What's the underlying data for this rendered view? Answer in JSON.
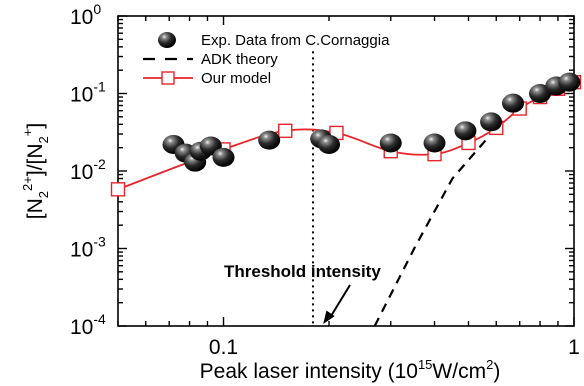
{
  "chart_data": {
    "type": "scatter",
    "title": "",
    "xlabel": "Peak laser intensity (10^15 W/cm^2)",
    "ylabel": "[N2 2+]/[N2 +]",
    "x_scale": "log",
    "y_scale": "log",
    "xlim": [
      0.05,
      1.0
    ],
    "ylim": [
      0.0001,
      1.0
    ],
    "x_ticks": [
      {
        "value": 0.1,
        "label": "0.1"
      },
      {
        "value": 1.0,
        "label": "1"
      }
    ],
    "y_ticks": [
      {
        "value": 0.0001,
        "base": "10",
        "exp": "-4"
      },
      {
        "value": 0.001,
        "base": "10",
        "exp": "-3"
      },
      {
        "value": 0.01,
        "base": "10",
        "exp": "-2"
      },
      {
        "value": 0.1,
        "base": "10",
        "exp": "-1"
      },
      {
        "value": 1.0,
        "base": "10",
        "exp": "0"
      }
    ],
    "grid": false,
    "legend_position": "top-left",
    "series": [
      {
        "name": "Exp. Data from C.Cornaggia",
        "style": "spheres",
        "color": "#222222",
        "points": [
          {
            "x": 0.072,
            "y": 0.022
          },
          {
            "x": 0.078,
            "y": 0.017
          },
          {
            "x": 0.083,
            "y": 0.013
          },
          {
            "x": 0.086,
            "y": 0.018
          },
          {
            "x": 0.092,
            "y": 0.021
          },
          {
            "x": 0.1,
            "y": 0.015
          },
          {
            "x": 0.135,
            "y": 0.025
          },
          {
            "x": 0.19,
            "y": 0.026
          },
          {
            "x": 0.2,
            "y": 0.022
          },
          {
            "x": 0.3,
            "y": 0.023
          },
          {
            "x": 0.4,
            "y": 0.023
          },
          {
            "x": 0.49,
            "y": 0.033
          },
          {
            "x": 0.58,
            "y": 0.043
          },
          {
            "x": 0.67,
            "y": 0.075
          },
          {
            "x": 0.8,
            "y": 0.1
          },
          {
            "x": 0.89,
            "y": 0.125
          },
          {
            "x": 0.97,
            "y": 0.14
          }
        ]
      },
      {
        "name": "ADK theory",
        "style": "dashed",
        "color": "#000000",
        "points": [
          {
            "x": 0.27,
            "y": 0.0001
          },
          {
            "x": 0.35,
            "y": 0.001
          },
          {
            "x": 0.45,
            "y": 0.008
          },
          {
            "x": 0.56,
            "y": 0.025
          }
        ]
      },
      {
        "name": "Our model",
        "style": "line-open-square",
        "color": "#e8242b",
        "points": [
          {
            "x": 0.05,
            "y": 0.0058
          },
          {
            "x": 0.1,
            "y": 0.019
          },
          {
            "x": 0.15,
            "y": 0.033
          },
          {
            "x": 0.21,
            "y": 0.031
          },
          {
            "x": 0.3,
            "y": 0.018
          },
          {
            "x": 0.4,
            "y": 0.0165
          },
          {
            "x": 0.5,
            "y": 0.023
          },
          {
            "x": 0.6,
            "y": 0.036
          },
          {
            "x": 0.7,
            "y": 0.064
          },
          {
            "x": 0.8,
            "y": 0.09
          },
          {
            "x": 0.9,
            "y": 0.115
          },
          {
            "x": 1.0,
            "y": 0.14
          }
        ]
      }
    ],
    "annotations": [
      {
        "text": "Threshold intensity",
        "arrow_to": {
          "x": 0.19,
          "y": 0.0001
        }
      },
      {
        "type": "vertical-dotted-line",
        "x": 0.18
      }
    ]
  }
}
